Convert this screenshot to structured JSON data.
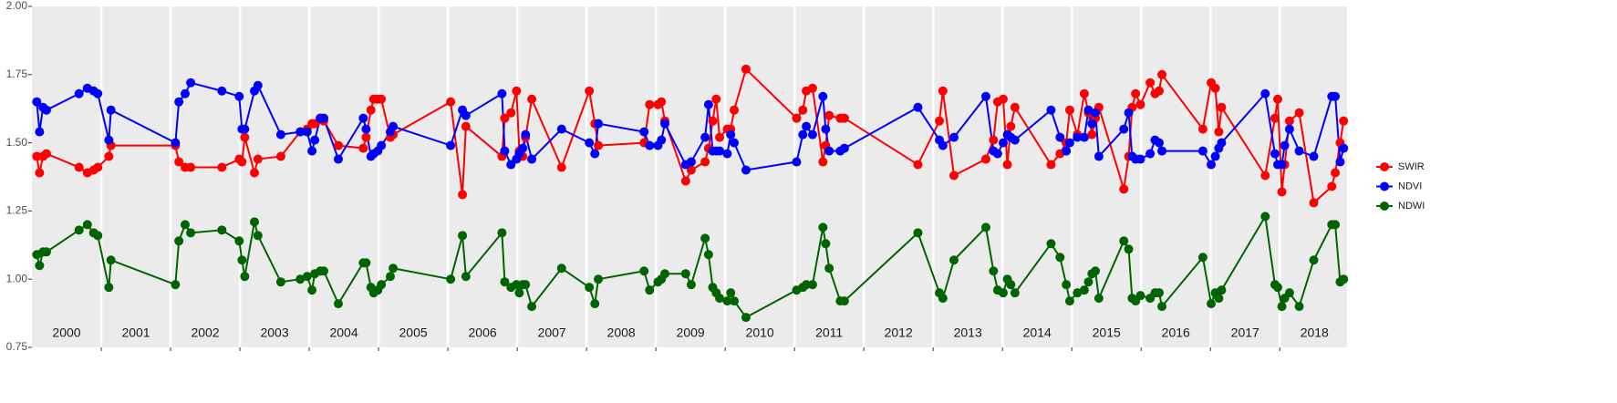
{
  "chart_data": {
    "type": "line",
    "x": [
      2000.07,
      2000.11,
      2000.16,
      2000.21,
      2000.68,
      2000.8,
      2000.89,
      2000.95,
      2001.11,
      2001.14,
      2002.07,
      2002.12,
      2002.21,
      2002.29,
      2002.74,
      2002.99,
      2003.03,
      2003.07,
      2003.21,
      2003.26,
      2003.59,
      2003.87,
      2003.97,
      2004.04,
      2004.08,
      2004.16,
      2004.21,
      2004.42,
      2004.78,
      2004.82,
      2004.89,
      2004.93,
      2004.99,
      2005.04,
      2005.17,
      2005.21,
      2006.04,
      2006.21,
      2006.26,
      2006.78,
      2006.82,
      2006.91,
      2006.99,
      2007.03,
      2007.08,
      2007.12,
      2007.21,
      2007.64,
      2008.04,
      2008.12,
      2008.17,
      2008.83,
      2008.91,
      2009.03,
      2009.08,
      2009.13,
      2009.43,
      2009.51,
      2009.71,
      2009.76,
      2009.82,
      2009.87,
      2009.92,
      2010.03,
      2010.08,
      2010.13,
      2010.3,
      2011.03,
      2011.12,
      2011.17,
      2011.26,
      2011.41,
      2011.45,
      2011.5,
      2011.66,
      2011.72,
      2012.78,
      2013.09,
      2013.14,
      2013.3,
      2013.76,
      2013.87,
      2013.93,
      2014.01,
      2014.07,
      2014.12,
      2014.18,
      2014.7,
      2014.83,
      2014.92,
      2014.97,
      2015.08,
      2015.18,
      2015.24,
      2015.29,
      2015.34,
      2015.39,
      2015.75,
      2015.82,
      2015.87,
      2015.92,
      2015.99,
      2016.13,
      2016.2,
      2016.26,
      2016.3,
      2016.89,
      2017.01,
      2017.07,
      2017.12,
      2017.16,
      2017.79,
      2017.93,
      2017.97,
      2018.03,
      2018.07,
      2018.14,
      2018.28,
      2018.49,
      2018.75,
      2018.8,
      2018.87,
      2018.92
    ],
    "series": [
      {
        "name": "SWIR",
        "color": "#ff0000",
        "values": [
          1.45,
          1.39,
          1.45,
          1.46,
          1.41,
          1.39,
          1.4,
          1.41,
          1.45,
          1.49,
          1.49,
          1.43,
          1.41,
          1.41,
          1.41,
          1.44,
          1.43,
          1.52,
          1.39,
          1.44,
          1.45,
          1.54,
          1.55,
          1.57,
          1.57,
          1.59,
          1.58,
          1.49,
          1.48,
          1.52,
          1.62,
          1.66,
          1.66,
          1.66,
          1.52,
          1.53,
          1.65,
          1.31,
          1.56,
          1.45,
          1.59,
          1.61,
          1.69,
          1.47,
          1.45,
          1.52,
          1.66,
          1.41,
          1.69,
          1.57,
          1.49,
          1.5,
          1.64,
          1.64,
          1.65,
          1.58,
          1.36,
          1.4,
          1.43,
          1.48,
          1.58,
          1.66,
          1.52,
          1.55,
          1.55,
          1.62,
          1.77,
          1.59,
          1.62,
          1.69,
          1.7,
          1.43,
          1.49,
          1.6,
          1.59,
          1.59,
          1.42,
          1.58,
          1.69,
          1.38,
          1.44,
          1.51,
          1.65,
          1.66,
          1.42,
          1.56,
          1.63,
          1.42,
          1.46,
          1.5,
          1.62,
          1.53,
          1.68,
          1.61,
          1.53,
          1.59,
          1.63,
          1.33,
          1.45,
          1.63,
          1.68,
          1.64,
          1.72,
          1.68,
          1.69,
          1.75,
          1.55,
          1.72,
          1.7,
          1.54,
          1.63,
          1.38,
          1.59,
          1.66,
          1.32,
          1.42,
          1.58,
          1.61,
          1.28,
          1.34,
          1.39,
          1.5,
          1.58
        ]
      },
      {
        "name": "NDVI",
        "color": "#0000ff",
        "values": [
          1.65,
          1.54,
          1.63,
          1.62,
          1.68,
          1.7,
          1.69,
          1.68,
          1.51,
          1.62,
          1.5,
          1.65,
          1.68,
          1.72,
          1.69,
          1.67,
          1.55,
          1.55,
          1.69,
          1.71,
          1.53,
          1.54,
          1.54,
          1.47,
          1.51,
          1.59,
          1.59,
          1.44,
          1.59,
          1.55,
          1.45,
          1.46,
          1.47,
          1.49,
          1.54,
          1.56,
          1.49,
          1.62,
          1.6,
          1.68,
          1.47,
          1.42,
          1.44,
          1.46,
          1.48,
          1.53,
          1.44,
          1.55,
          1.5,
          1.46,
          1.57,
          1.54,
          1.49,
          1.49,
          1.51,
          1.57,
          1.42,
          1.43,
          1.52,
          1.64,
          1.47,
          1.47,
          1.47,
          1.46,
          1.53,
          1.5,
          1.4,
          1.43,
          1.53,
          1.56,
          1.53,
          1.67,
          1.55,
          1.47,
          1.47,
          1.48,
          1.63,
          1.51,
          1.49,
          1.52,
          1.67,
          1.47,
          1.46,
          1.5,
          1.53,
          1.52,
          1.51,
          1.62,
          1.52,
          1.47,
          1.5,
          1.52,
          1.52,
          1.62,
          1.57,
          1.61,
          1.45,
          1.55,
          1.61,
          1.45,
          1.44,
          1.44,
          1.46,
          1.51,
          1.5,
          1.47,
          1.47,
          1.42,
          1.45,
          1.48,
          1.5,
          1.68,
          1.46,
          1.42,
          1.42,
          1.49,
          1.55,
          1.47,
          1.45,
          1.67,
          1.67,
          1.43,
          1.48
        ]
      },
      {
        "name": "NDWI",
        "color": "#006400",
        "values": [
          1.09,
          1.05,
          1.1,
          1.1,
          1.18,
          1.2,
          1.17,
          1.16,
          0.97,
          1.07,
          0.98,
          1.14,
          1.2,
          1.17,
          1.18,
          1.14,
          1.07,
          1.01,
          1.21,
          1.16,
          0.99,
          1.0,
          1.01,
          0.96,
          1.02,
          1.03,
          1.03,
          0.91,
          1.06,
          1.06,
          0.97,
          0.95,
          0.96,
          0.98,
          1.01,
          1.04,
          1.0,
          1.16,
          1.01,
          1.17,
          0.99,
          0.97,
          0.98,
          0.95,
          0.98,
          0.98,
          0.9,
          1.04,
          0.97,
          0.91,
          1.0,
          1.03,
          0.96,
          0.99,
          1.0,
          1.02,
          1.02,
          0.98,
          1.15,
          1.09,
          0.97,
          0.95,
          0.93,
          0.92,
          0.95,
          0.92,
          0.86,
          0.96,
          0.97,
          0.98,
          0.98,
          1.19,
          1.13,
          1.04,
          0.92,
          0.92,
          1.17,
          0.95,
          0.93,
          1.07,
          1.19,
          1.03,
          0.96,
          0.95,
          1.0,
          0.98,
          0.95,
          1.13,
          1.08,
          0.98,
          0.92,
          0.95,
          0.96,
          0.99,
          1.02,
          1.03,
          0.93,
          1.14,
          1.11,
          0.93,
          0.92,
          0.94,
          0.93,
          0.95,
          0.95,
          0.9,
          1.08,
          0.91,
          0.95,
          0.93,
          0.96,
          1.23,
          0.98,
          0.97,
          0.9,
          0.93,
          0.95,
          0.9,
          1.07,
          1.2,
          1.2,
          0.99,
          1.0
        ]
      }
    ],
    "xlim": [
      2000,
      2018.97
    ],
    "xticks": [
      2001,
      2002,
      2003,
      2004,
      2005,
      2006,
      2007,
      2008,
      2009,
      2010,
      2011,
      2012,
      2013,
      2014,
      2015,
      2016,
      2017,
      2018
    ],
    "year_labels": [
      "2000",
      "2001",
      "2002",
      "2003",
      "2004",
      "2005",
      "2006",
      "2007",
      "2008",
      "2009",
      "2010",
      "2011",
      "2012",
      "2013",
      "2014",
      "2015",
      "2016",
      "2017",
      "2018"
    ],
    "ylim": [
      0.75,
      2
    ],
    "yticks": [
      0.75,
      {
        "value": 1,
        "label": "1.00"
      },
      1.25,
      {
        "value": 1.5,
        "label": "1.50"
      },
      1.75,
      {
        "value": 2,
        "label": "2.00"
      }
    ],
    "grid": false,
    "legend": "right"
  }
}
